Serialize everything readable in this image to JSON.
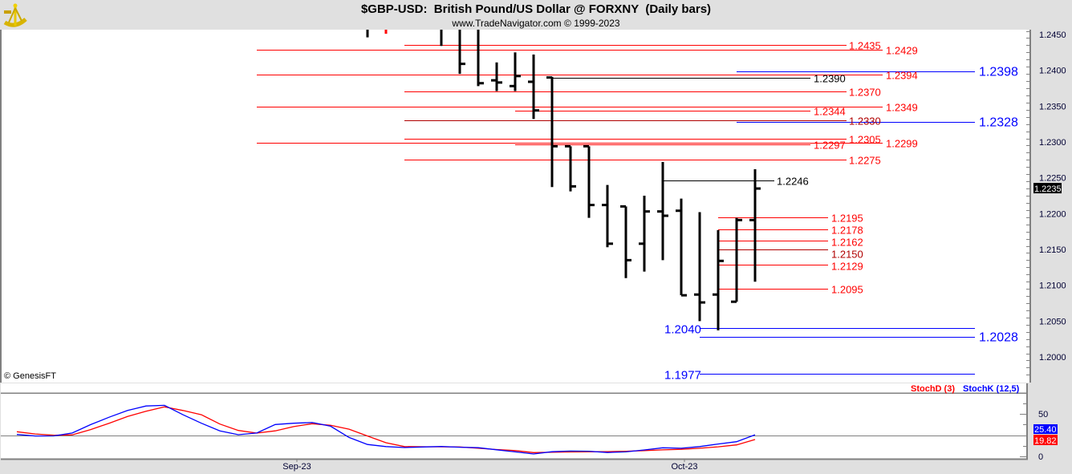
{
  "header": {
    "title": "$GBP-USD:  British Pound/US Dollar @ FORXNY  (Daily bars)",
    "subtitle": "www.TradeNavigator.com © 1999-2023",
    "logo": "sextant-logo"
  },
  "copyright": "© GenesisFT",
  "colors": {
    "bar": "#000000",
    "down_bar": "#ff0000",
    "fib_red": "#ff0000",
    "fib_blue": "#0000ff",
    "stoch_k": "#0000ff",
    "stoch_d": "#ff0000",
    "last_price_bg": "#000000"
  },
  "chart_data": [
    {
      "type": "ohlc",
      "title": "$GBP-USD:  British Pound/US Dollar @ FORXNY  (Daily bars)",
      "y_ticks": [
        "1.2450",
        "1.2400",
        "1.2350",
        "1.2300",
        "1.2250",
        "1.2200",
        "1.2150",
        "1.2100",
        "1.2050",
        "1.2000"
      ],
      "ylim": [
        1.1975,
        1.2455
      ],
      "last_price": "1.2235",
      "bars": [
        {
          "date": "2023-09-07",
          "o": 1.2468,
          "h": 1.2475,
          "l": 1.2446,
          "c": 1.2468,
          "color": "black"
        },
        {
          "date": "2023-09-08",
          "o": 1.2468,
          "h": 1.2475,
          "l": 1.2451,
          "c": 1.2468,
          "color": "red"
        },
        {
          "date": "2023-09-13",
          "o": 1.247,
          "h": 1.248,
          "l": 1.2434,
          "c": 1.2462,
          "color": "black"
        },
        {
          "date": "2023-09-14",
          "o": 1.247,
          "h": 1.248,
          "l": 1.2395,
          "c": 1.2409,
          "color": "black"
        },
        {
          "date": "2023-09-15",
          "o": 1.247,
          "h": 1.248,
          "l": 1.2378,
          "c": 1.2382,
          "color": "black"
        },
        {
          "date": "2023-09-18",
          "o": 1.2386,
          "h": 1.2411,
          "l": 1.2371,
          "c": 1.2383,
          "color": "black"
        },
        {
          "date": "2023-09-19",
          "o": 1.2378,
          "h": 1.2425,
          "l": 1.2371,
          "c": 1.2392,
          "color": "black"
        },
        {
          "date": "2023-09-20",
          "o": 1.2384,
          "h": 1.2422,
          "l": 1.2332,
          "c": 1.2344,
          "color": "black"
        },
        {
          "date": "2023-09-21",
          "o": 1.239,
          "h": 1.2391,
          "l": 1.2237,
          "c": 1.2294,
          "color": "black"
        },
        {
          "date": "2023-09-22",
          "o": 1.2294,
          "h": 1.2294,
          "l": 1.2231,
          "c": 1.2238,
          "color": "black"
        },
        {
          "date": "2023-09-25",
          "o": 1.2294,
          "h": 1.2294,
          "l": 1.2194,
          "c": 1.2212,
          "color": "black"
        },
        {
          "date": "2023-09-26",
          "o": 1.2212,
          "h": 1.224,
          "l": 1.2153,
          "c": 1.2158,
          "color": "black"
        },
        {
          "date": "2023-09-27",
          "o": 1.221,
          "h": 1.221,
          "l": 1.211,
          "c": 1.2135,
          "color": "black"
        },
        {
          "date": "2023-09-28",
          "o": 1.2158,
          "h": 1.2225,
          "l": 1.2119,
          "c": 1.2203,
          "color": "black"
        },
        {
          "date": "2023-09-29",
          "o": 1.2203,
          "h": 1.2272,
          "l": 1.2135,
          "c": 1.2197,
          "color": "black"
        },
        {
          "date": "2023-10-02",
          "o": 1.2204,
          "h": 1.2221,
          "l": 1.2086,
          "c": 1.2086,
          "color": "black"
        },
        {
          "date": "2023-10-03",
          "o": 1.2087,
          "h": 1.2202,
          "l": 1.205,
          "c": 1.2076,
          "color": "black"
        },
        {
          "date": "2023-10-04",
          "o": 1.2087,
          "h": 1.2177,
          "l": 1.2037,
          "c": 1.2134,
          "color": "black"
        },
        {
          "date": "2023-10-05",
          "o": 1.2077,
          "h": 1.2194,
          "l": 1.2077,
          "c": 1.2191,
          "color": "black"
        },
        {
          "date": "2023-10-06",
          "o": 1.2191,
          "h": 1.2262,
          "l": 1.2105,
          "c": 1.2235,
          "color": "black"
        }
      ],
      "levels": [
        {
          "price": 1.2435,
          "label": "1.2435",
          "color": "red",
          "from": "2023-09-11",
          "group": "mid"
        },
        {
          "price": 1.2429,
          "label": "1.2429",
          "color": "red",
          "from": "2023-08-30",
          "group": "long"
        },
        {
          "price": 1.2398,
          "label": "1.2398",
          "color": "blue",
          "from": "2023-10-05",
          "group": "far"
        },
        {
          "price": 1.2394,
          "label": "1.2394",
          "color": "red",
          "from": "2023-08-30",
          "group": "long"
        },
        {
          "price": 1.239,
          "label": "1.2390",
          "color": "black",
          "from": "2023-09-21",
          "group": "short"
        },
        {
          "price": 1.237,
          "label": "1.2370",
          "color": "red",
          "from": "2023-09-11",
          "group": "mid"
        },
        {
          "price": 1.2349,
          "label": "1.2349",
          "color": "red",
          "from": "2023-08-30",
          "group": "long"
        },
        {
          "price": 1.2344,
          "label": "1.2344",
          "color": "red",
          "from": "2023-09-19",
          "group": "short"
        },
        {
          "price": 1.233,
          "label": "1.2330",
          "color": "darkred",
          "from": "2023-09-11",
          "group": "mid"
        },
        {
          "price": 1.2328,
          "label": "1.2328",
          "color": "blue",
          "from": "2023-10-05",
          "group": "far"
        },
        {
          "price": 1.2305,
          "label": "1.2305",
          "color": "red",
          "from": "2023-09-11",
          "group": "mid"
        },
        {
          "price": 1.2299,
          "label": "1.2299",
          "color": "red",
          "from": "2023-08-30",
          "group": "long"
        },
        {
          "price": 1.2297,
          "label": "1.2297",
          "color": "red",
          "from": "2023-09-19",
          "group": "short"
        },
        {
          "price": 1.2275,
          "label": "1.2275",
          "color": "red",
          "from": "2023-09-11",
          "group": "mid"
        },
        {
          "price": 1.2246,
          "label": "1.2246",
          "color": "black",
          "from": "2023-09-29",
          "group": "tiny"
        },
        {
          "price": 1.2195,
          "label": "1.2195",
          "color": "red",
          "from": "2023-10-04",
          "group": "near"
        },
        {
          "price": 1.2178,
          "label": "1.2178",
          "color": "red",
          "from": "2023-10-04",
          "group": "near"
        },
        {
          "price": 1.2162,
          "label": "1.2162",
          "color": "red",
          "from": "2023-10-04",
          "group": "near"
        },
        {
          "price": 1.215,
          "label": "1.2150",
          "color": "darkred",
          "from": "2023-10-04",
          "group": "near"
        },
        {
          "price": 1.2129,
          "label": "1.2129",
          "color": "red",
          "from": "2023-10-04",
          "group": "near"
        },
        {
          "price": 1.2095,
          "label": "1.2095",
          "color": "red",
          "from": "2023-10-04",
          "group": "near"
        },
        {
          "price": 1.204,
          "label": "1.2040",
          "color": "blue",
          "from": "2023-10-03",
          "group": "left"
        },
        {
          "price": 1.2028,
          "label": "1.2028",
          "color": "blue",
          "from": "2023-10-03",
          "group": "far"
        },
        {
          "price": 1.1977,
          "label": "1.1977",
          "color": "blue",
          "from": "2023-10-03",
          "group": "left"
        }
      ]
    },
    {
      "type": "line",
      "legend": [
        {
          "name": "StochD (3)",
          "color": "#ff0000"
        },
        {
          "name": "StochK (12,5)",
          "color": "#0000ff"
        }
      ],
      "legend_placement": "top-right",
      "y_ticks": [
        "50",
        "0"
      ],
      "ylim": [
        0,
        80
      ],
      "reference_lines": [
        75,
        25
      ],
      "x_tick_labels": [
        {
          "date": "2023-09-01",
          "label": "Sep-23"
        },
        {
          "date": "2023-10-02",
          "label": "Oct-23"
        }
      ],
      "dates": [
        "2023-08-11",
        "2023-08-14",
        "2023-08-15",
        "2023-08-16",
        "2023-08-17",
        "2023-08-18",
        "2023-08-21",
        "2023-08-22",
        "2023-08-23",
        "2023-08-24",
        "2023-08-25",
        "2023-08-28",
        "2023-08-29",
        "2023-08-30",
        "2023-08-31",
        "2023-09-01",
        "2023-09-04",
        "2023-09-05",
        "2023-09-06",
        "2023-09-07",
        "2023-09-08",
        "2023-09-11",
        "2023-09-12",
        "2023-09-13",
        "2023-09-14",
        "2023-09-15",
        "2023-09-18",
        "2023-09-19",
        "2023-09-20",
        "2023-09-21",
        "2023-09-22",
        "2023-09-25",
        "2023-09-26",
        "2023-09-27",
        "2023-09-28",
        "2023-09-29",
        "2023-10-02",
        "2023-10-03",
        "2023-10-04",
        "2023-10-05",
        "2023-10-06"
      ],
      "series": [
        {
          "name": "StochK (12,5)",
          "color": "#0000ff",
          "last_label": "25.40",
          "values": [
            25.8,
            24,
            24.1,
            27.5,
            37.4,
            46,
            54,
            59.2,
            60,
            49,
            39,
            30,
            25.5,
            27.5,
            37.5,
            39,
            39.8,
            35.5,
            22.3,
            14,
            11.5,
            10.4,
            11,
            11.6,
            10.8,
            10.2,
            7.7,
            5.3,
            2.8,
            5.5,
            6.2,
            6,
            4.5,
            5.3,
            7.5,
            10.1,
            9.5,
            11.5,
            14.5,
            17.3,
            25.4
          ]
        },
        {
          "name": "StochD (3)",
          "color": "#ff0000",
          "last_label": "19.82",
          "values": [
            29,
            26.3,
            24.8,
            25.3,
            31.5,
            39,
            46.9,
            53,
            58.2,
            54,
            49,
            38,
            30.5,
            27.4,
            30,
            35,
            38.4,
            36.5,
            32,
            24,
            16,
            11.5,
            11.3,
            11.2,
            11,
            9.5,
            8,
            6.8,
            4.4,
            4.8,
            5.2,
            5.4,
            5.6,
            5.9,
            6.8,
            7.6,
            8.3,
            9.5,
            11.2,
            13.5,
            19.8
          ]
        }
      ]
    }
  ]
}
